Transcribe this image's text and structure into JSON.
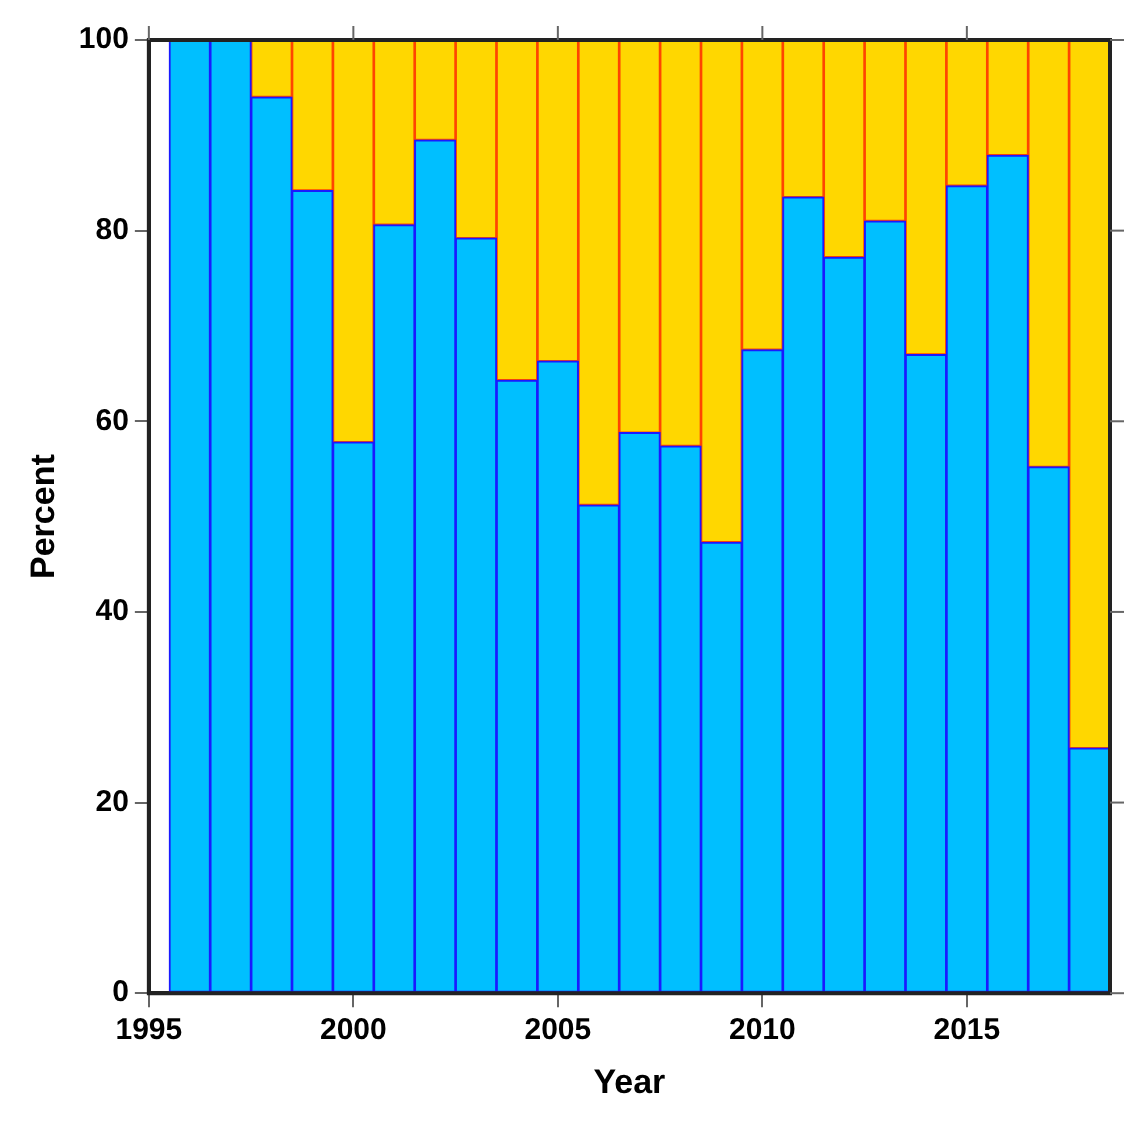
{
  "chart_data": {
    "type": "bar",
    "stacked": true,
    "xlabel": "Year",
    "ylabel": "Percent",
    "x": [
      1996,
      1997,
      1998,
      1999,
      2000,
      2001,
      2002,
      2003,
      2004,
      2005,
      2006,
      2007,
      2008,
      2009,
      2010,
      2011,
      2012,
      2013,
      2014,
      2015,
      2016,
      2017,
      2018
    ],
    "series": [
      {
        "color": "#00bfff",
        "values": [
          100,
          100,
          94,
          84.2,
          57.8,
          80.6,
          89.5,
          79.2,
          64.3,
          66.3,
          51.2,
          58.8,
          57.4,
          47.3,
          67.5,
          83.5,
          77.2,
          81,
          67,
          84.7,
          87.9,
          55.2,
          25.7
        ]
      },
      {
        "color": "#ffd700",
        "values": [
          0,
          0,
          6,
          15.8,
          42.2,
          19.4,
          10.5,
          20.8,
          35.7,
          33.7,
          48.8,
          41.2,
          42.6,
          52.7,
          32.5,
          16.5,
          22.8,
          19,
          33,
          15.3,
          12.1,
          44.8,
          74.3
        ]
      }
    ],
    "xlim": [
      1995,
      2018.5
    ],
    "xticks": [
      1995,
      2000,
      2005,
      2010,
      2015
    ],
    "ylim": [
      0,
      100
    ],
    "yticks": [
      0,
      20,
      40,
      60,
      80,
      100
    ],
    "grid": false,
    "legend": false
  }
}
